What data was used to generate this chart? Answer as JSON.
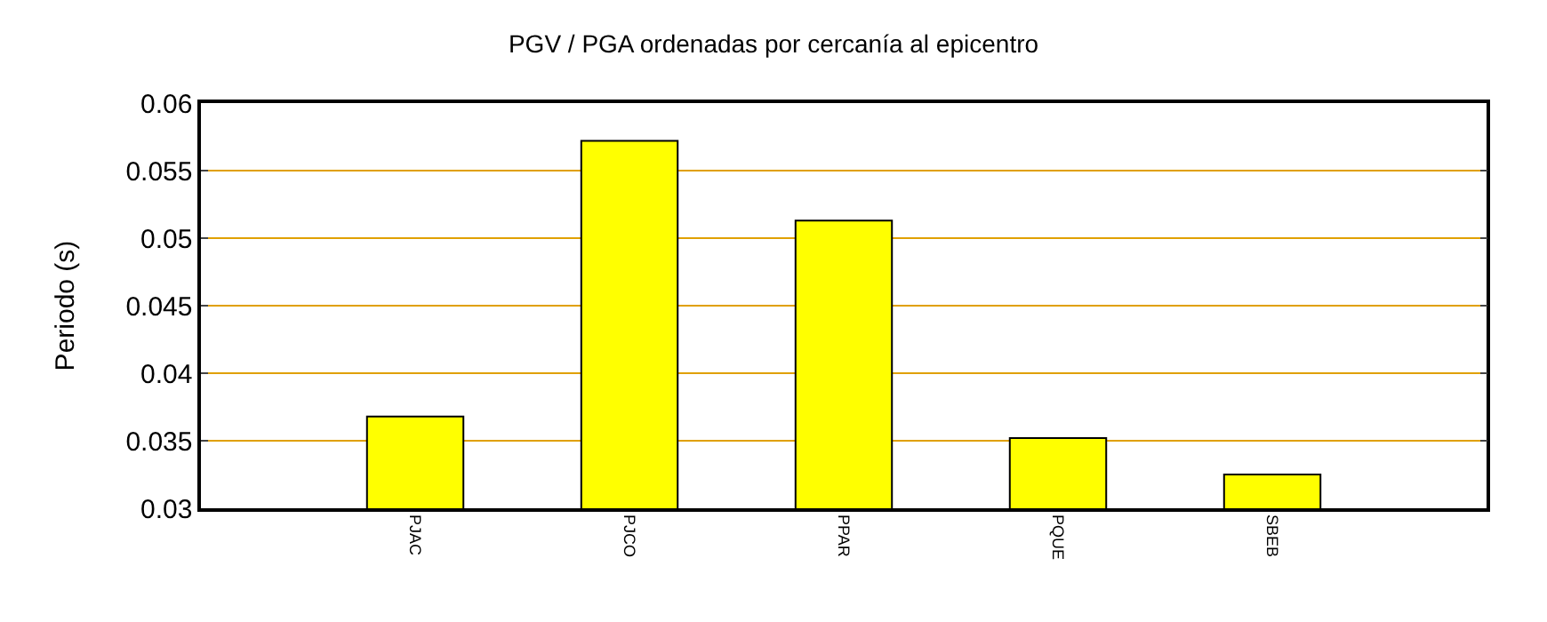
{
  "chart_data": {
    "type": "bar",
    "title": "PGV / PGA ordenadas por cercanía al epicentro",
    "ylabel": "Periodo (s)",
    "categories": [
      "PJAC",
      "PJCO",
      "PPAR",
      "PQUE",
      "SBEB"
    ],
    "values": [
      0.0368,
      0.0572,
      0.0513,
      0.0352,
      0.0325
    ],
    "color": "#ffff00",
    "ylim": [
      0.03,
      0.06
    ],
    "yticks": [
      0.03,
      0.035,
      0.04,
      0.045,
      0.05,
      0.055,
      0.06
    ],
    "grid": "y"
  }
}
